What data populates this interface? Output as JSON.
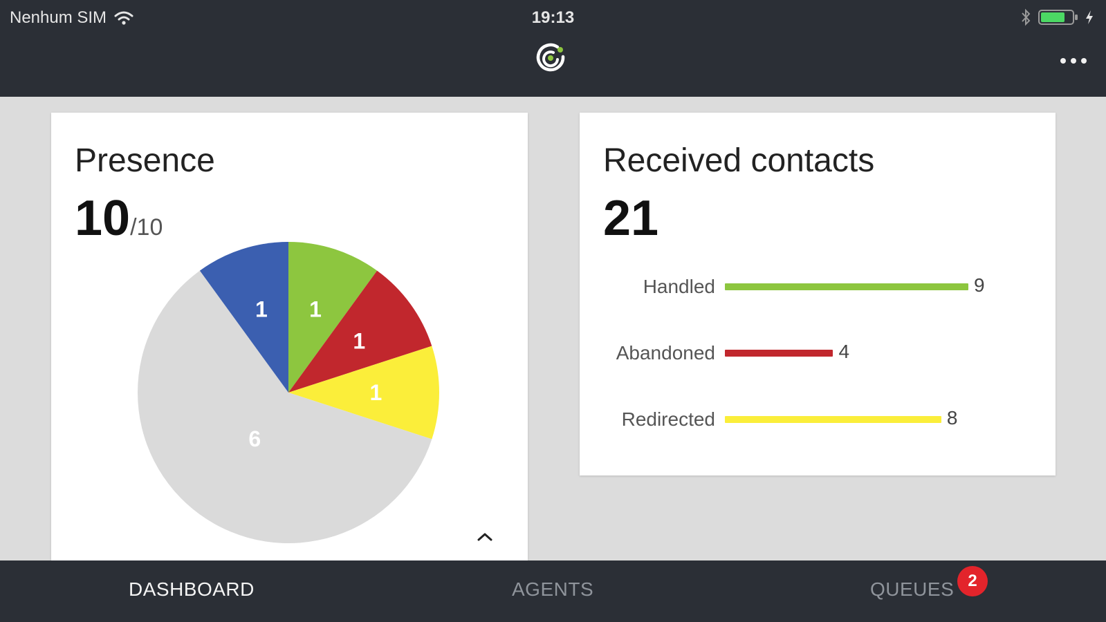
{
  "status_bar": {
    "carrier": "Nenhum SIM",
    "time": "19:13"
  },
  "colors": {
    "header_bg": "#2b2f36",
    "green": "#8dc63f",
    "red": "#c1272d",
    "yellow": "#fbee3a",
    "blue": "#3b5fb0",
    "gray": "#dadada",
    "badge": "#e3242b"
  },
  "presence": {
    "title": "Presence",
    "count": "10",
    "total": "/10"
  },
  "received_contacts": {
    "title": "Received contacts",
    "count": "21"
  },
  "chart_data": [
    {
      "type": "pie",
      "title": "",
      "slices": [
        {
          "value": 1,
          "label": "1",
          "color": "#8dc63f"
        },
        {
          "value": 1,
          "label": "1",
          "color": "#c1272d"
        },
        {
          "value": 1,
          "label": "1",
          "color": "#fbee3a"
        },
        {
          "value": 6,
          "label": "6",
          "color": "#dadada"
        },
        {
          "value": 1,
          "label": "1",
          "color": "#3b5fb0"
        }
      ]
    },
    {
      "type": "bar",
      "orientation": "horizontal",
      "categories": [
        "Handled",
        "Abandoned",
        "Redirected"
      ],
      "values": [
        9,
        4,
        8
      ],
      "colors": [
        "#8dc63f",
        "#c1272d",
        "#fbee3a"
      ],
      "xlim": [
        0,
        9
      ]
    }
  ],
  "tabs": [
    {
      "label": "DASHBOARD",
      "active": true
    },
    {
      "label": "AGENTS",
      "active": false
    },
    {
      "label": "QUEUES",
      "active": false,
      "badge": "2"
    }
  ],
  "icons": [
    "wifi-icon",
    "bluetooth-icon",
    "battery-icon",
    "charging-icon",
    "app-logo-icon",
    "more-icon",
    "chevron-up-icon"
  ]
}
